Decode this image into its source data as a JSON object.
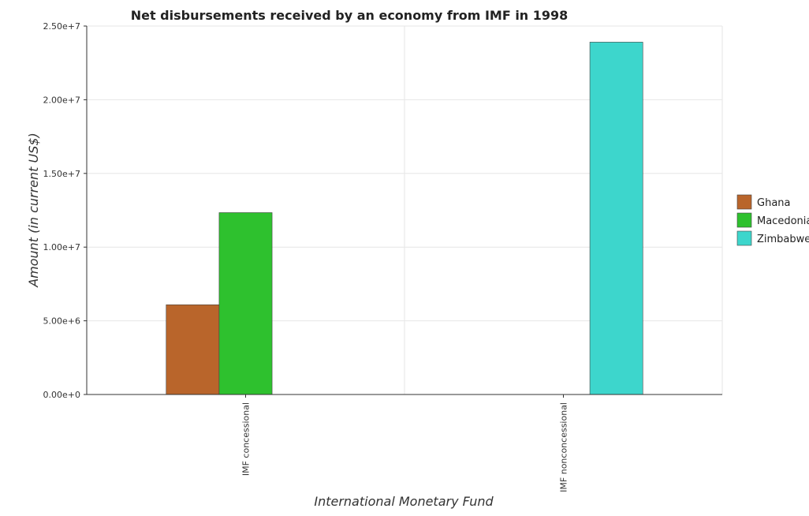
{
  "chart_data": {
    "type": "bar",
    "title": "Net disbursements received by an economy from IMF in 1998",
    "xlabel": "International Monetary Fund",
    "ylabel": "Amount (in current US$)",
    "categories": [
      "IMF concessional",
      "IMF nonconcessional"
    ],
    "series": [
      {
        "name": "Ghana",
        "color": "#b9652b",
        "values": [
          6090000,
          0
        ]
      },
      {
        "name": "Macedonia",
        "color": "#2ec12e",
        "values": [
          12340000,
          0
        ]
      },
      {
        "name": "Zimbabwe",
        "color": "#3dd6cc",
        "values": [
          0,
          23910000
        ]
      }
    ],
    "ylim": [
      0,
      25000000
    ],
    "yticks": [
      0,
      5000000,
      10000000,
      15000000,
      20000000,
      25000000
    ],
    "ytick_labels": [
      "0.00e+0",
      "5.00e+6",
      "1.00e+7",
      "1.50e+7",
      "2.00e+7",
      "2.50e+7"
    ],
    "grid": true,
    "legend_position": "right"
  }
}
